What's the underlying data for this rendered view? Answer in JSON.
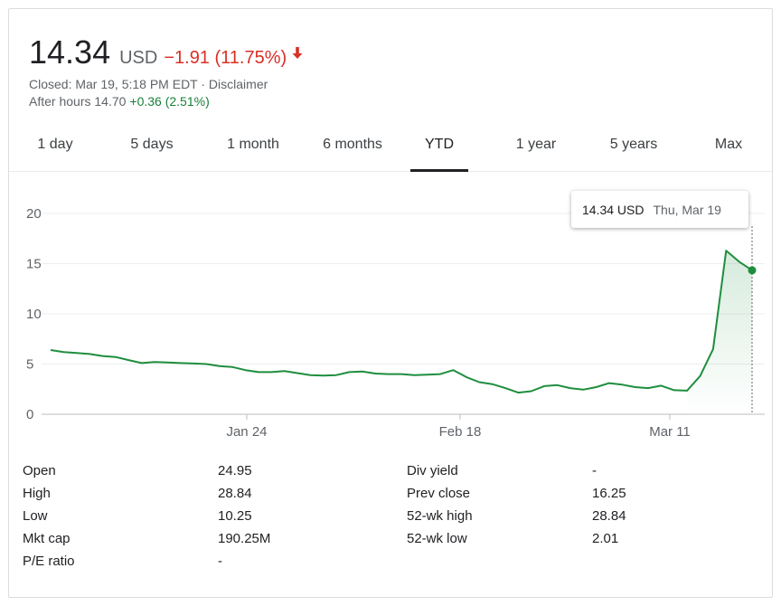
{
  "quote": {
    "price": "14.34",
    "currency": "USD",
    "change": "−1.91 (11.75%)",
    "change_color": "#d93025",
    "status": "Closed: Mar 19, 5:18 PM EDT · Disclaimer",
    "after_hours_label": "After hours 14.70",
    "after_hours_change": "+0.36 (2.51%)",
    "after_hours_color": "#188038"
  },
  "tabs": [
    "1 day",
    "5 days",
    "1 month",
    "6 months",
    "YTD",
    "1 year",
    "5 years",
    "Max"
  ],
  "active_tab": "YTD",
  "tooltip": {
    "price": "14.34 USD",
    "date": "Thu, Mar 19"
  },
  "chart_data": {
    "type": "area",
    "line_color": "#1e8e3e",
    "x_ticks": [
      "Jan 24",
      "Feb 18",
      "Mar 11"
    ],
    "y_ticks": [
      0,
      5,
      10,
      15,
      20
    ],
    "ylim": [
      0,
      20
    ],
    "series": [
      {
        "values": [
          6.4,
          6.2,
          6.1,
          6.0,
          5.8,
          5.7,
          5.4,
          5.1,
          5.2,
          5.15,
          5.1,
          5.05,
          5.0,
          4.8,
          4.7,
          4.4,
          4.2,
          4.2,
          4.3,
          4.1,
          3.9,
          3.85,
          3.9,
          4.2,
          4.25,
          4.05,
          4.0,
          4.0,
          3.9,
          3.95,
          4.0,
          4.4,
          3.7,
          3.2,
          3.0,
          2.6,
          2.15,
          2.3,
          2.8,
          2.9,
          2.6,
          2.45,
          2.7,
          3.1,
          2.95,
          2.7,
          2.6,
          2.85,
          2.4,
          2.35,
          3.8,
          6.5,
          16.3,
          15.2,
          14.34
        ]
      }
    ]
  },
  "stats": {
    "left": [
      {
        "label": "Open",
        "value": "24.95"
      },
      {
        "label": "High",
        "value": "28.84"
      },
      {
        "label": "Low",
        "value": "10.25"
      },
      {
        "label": "Mkt cap",
        "value": "190.25M"
      },
      {
        "label": "P/E ratio",
        "value": "-"
      }
    ],
    "right": [
      {
        "label": "Div yield",
        "value": "-"
      },
      {
        "label": "Prev close",
        "value": "16.25"
      },
      {
        "label": "52-wk high",
        "value": "28.84"
      },
      {
        "label": "52-wk low",
        "value": "2.01"
      }
    ]
  }
}
